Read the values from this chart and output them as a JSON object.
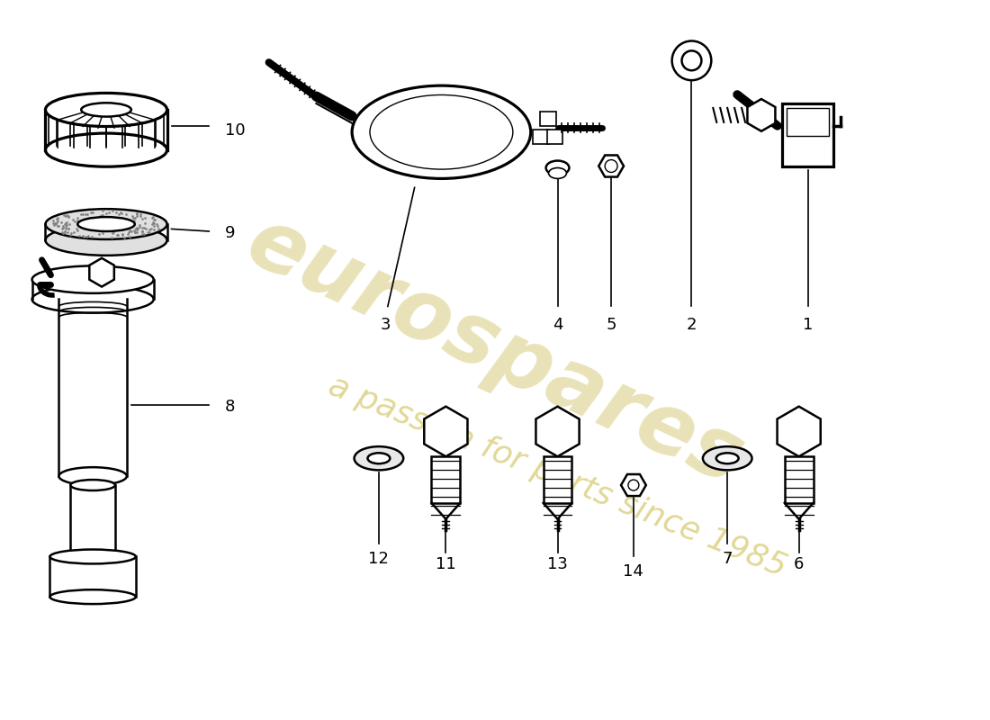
{
  "background_color": "#ffffff",
  "line_color": "#000000",
  "watermark_text1": "eurospares",
  "watermark_text2": "a passion for parts since 1985",
  "watermark_color": "#cfc060",
  "watermark_color2": "#c8b840"
}
